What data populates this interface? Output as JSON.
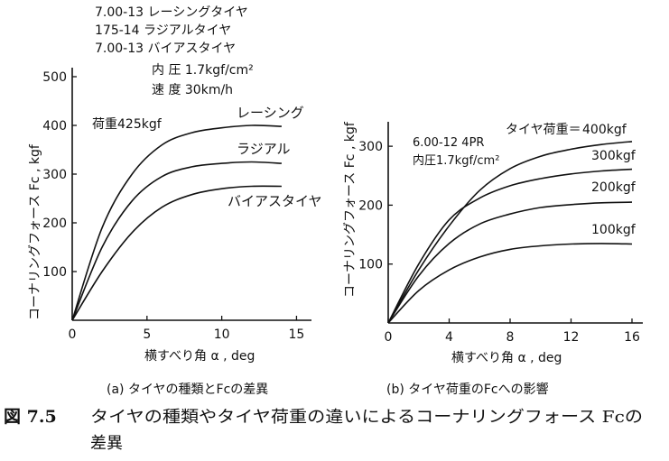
{
  "figure": {
    "label": "図 7.5",
    "caption_line1": "タイヤの種類やタイヤ荷重の違いによるコーナリングフォース Fcの",
    "caption_line2": "差異"
  },
  "chart_data": [
    {
      "type": "line",
      "subcaption": "(a) タイヤの種類とFcの差異",
      "xlabel": "横すべり角 α , deg",
      "ylabel": "コーナリングフォース Fc , kgf",
      "xlim": [
        0,
        16
      ],
      "ylim": [
        0,
        500
      ],
      "xticks": [
        0,
        5,
        10,
        15
      ],
      "yticks": [
        100,
        200,
        300,
        400,
        500
      ],
      "legend_lines": [
        "7.00-13 レーシングタイヤ",
        "175-14 ラジアルタイヤ",
        "7.00-13 バイアスタイヤ"
      ],
      "conditions": [
        "内 圧 1.7kgf/cm²",
        "速 度 30km/h"
      ],
      "load_note": "荷重425kgf",
      "grid": false,
      "series": [
        {
          "name": "レーシング",
          "x": [
            0,
            2,
            4,
            6,
            8,
            10,
            12,
            14
          ],
          "y": [
            0,
            190,
            300,
            360,
            385,
            395,
            400,
            398
          ]
        },
        {
          "name": "ラジアル",
          "x": [
            0,
            2,
            4,
            6,
            8,
            10,
            12,
            14
          ],
          "y": [
            0,
            150,
            245,
            295,
            315,
            322,
            325,
            322
          ]
        },
        {
          "name": "バイアスタイヤ",
          "x": [
            0,
            2,
            4,
            6,
            8,
            10,
            12,
            14
          ],
          "y": [
            0,
            100,
            180,
            232,
            258,
            270,
            275,
            275
          ]
        }
      ]
    },
    {
      "type": "line",
      "subcaption": "(b) タイヤ荷重のFcへの影響",
      "xlabel": "横すべり角 α , deg",
      "ylabel": "コーナリングフォース Fc , kgf",
      "xlim": [
        0,
        16
      ],
      "ylim": [
        0,
        340
      ],
      "xticks": [
        0,
        4,
        8,
        12,
        16
      ],
      "yticks": [
        100,
        200,
        300
      ],
      "tire_note": [
        "6.00-12 4PR",
        "内圧1.7kgf/cm²"
      ],
      "load_prefix": "タイヤ荷重＝",
      "grid": false,
      "series": [
        {
          "name": "400kgf",
          "x": [
            0,
            2,
            4,
            6,
            8,
            10,
            12,
            14,
            16
          ],
          "y": [
            0,
            90,
            165,
            225,
            262,
            283,
            295,
            303,
            308
          ]
        },
        {
          "name": "300kgf",
          "x": [
            0,
            2,
            4,
            6,
            8,
            10,
            12,
            14,
            16
          ],
          "y": [
            0,
            100,
            175,
            212,
            233,
            245,
            253,
            258,
            261
          ]
        },
        {
          "name": "200kgf",
          "x": [
            0,
            2,
            4,
            6,
            8,
            10,
            12,
            14,
            16
          ],
          "y": [
            0,
            80,
            135,
            168,
            185,
            196,
            201,
            204,
            205
          ]
        },
        {
          "name": "100kgf",
          "x": [
            0,
            2,
            4,
            6,
            8,
            10,
            12,
            14,
            16
          ],
          "y": [
            0,
            55,
            90,
            112,
            125,
            131,
            134,
            135,
            134
          ]
        }
      ]
    }
  ]
}
